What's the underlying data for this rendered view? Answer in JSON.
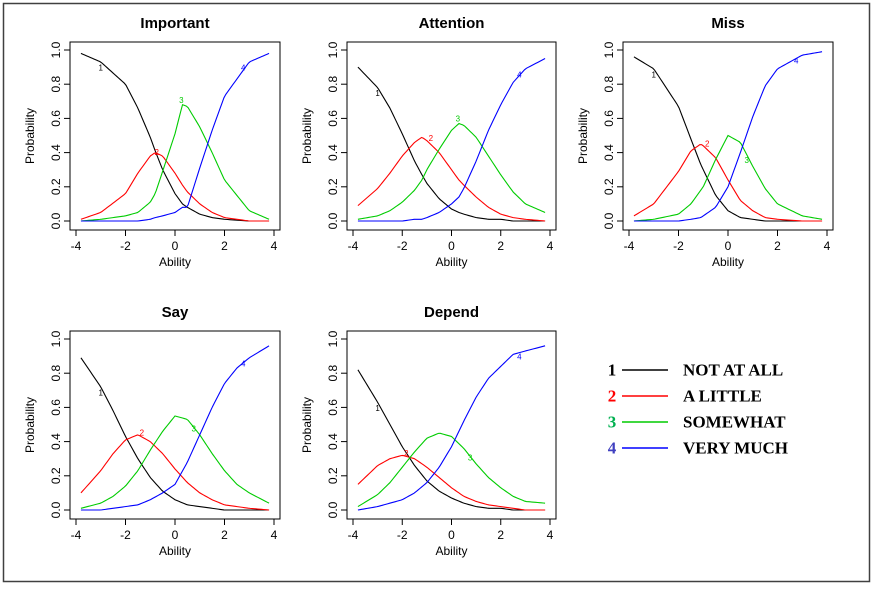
{
  "chart_data": [
    {
      "type": "line",
      "title": "Important",
      "xlabel": "Ability",
      "ylabel": "Probability",
      "xlim": [
        -4,
        4
      ],
      "ylim": [
        0,
        1
      ],
      "x_ticks": [
        "-4",
        "-2",
        "0",
        "2",
        "4"
      ],
      "y_ticks": [
        "0.0",
        "0.2",
        "0.4",
        "0.6",
        "0.8",
        "1.0"
      ],
      "x": [
        -3.8,
        -3,
        -2,
        -1.5,
        -1,
        -0.8,
        -0.5,
        0,
        0.3,
        0.5,
        1,
        1.5,
        2,
        3,
        3.8
      ],
      "series": [
        {
          "name": "1",
          "values": [
            0.98,
            0.93,
            0.8,
            0.66,
            0.49,
            0.41,
            0.3,
            0.16,
            0.1,
            0.08,
            0.04,
            0.02,
            0.01,
            0.0,
            0.0
          ]
        },
        {
          "name": "2",
          "values": [
            0.01,
            0.05,
            0.16,
            0.28,
            0.38,
            0.4,
            0.38,
            0.28,
            0.21,
            0.17,
            0.1,
            0.05,
            0.02,
            0.0,
            0.0
          ]
        },
        {
          "name": "3",
          "values": [
            0.0,
            0.01,
            0.03,
            0.05,
            0.11,
            0.16,
            0.29,
            0.51,
            0.68,
            0.67,
            0.55,
            0.4,
            0.24,
            0.06,
            0.01
          ]
        },
        {
          "name": "4",
          "values": [
            0.0,
            0.0,
            0.0,
            0.0,
            0.01,
            0.02,
            0.03,
            0.05,
            0.08,
            0.08,
            0.31,
            0.53,
            0.73,
            0.93,
            0.98
          ]
        }
      ],
      "curve_label_x": [
        -3,
        -0.9,
        0.5,
        3
      ]
    },
    {
      "type": "line",
      "title": "Attention",
      "xlabel": "Ability",
      "ylabel": "Probability",
      "xlim": [
        -4,
        4
      ],
      "ylim": [
        0,
        1
      ],
      "x_ticks": [
        "-4",
        "-2",
        "0",
        "2",
        "4"
      ],
      "y_ticks": [
        "0.0",
        "0.2",
        "0.4",
        "0.6",
        "0.8",
        "1.0"
      ],
      "x": [
        -3.8,
        -3,
        -2.5,
        -2,
        -1.5,
        -1.2,
        -1,
        -0.5,
        0,
        0.3,
        0.5,
        1,
        1.5,
        2,
        2.5,
        3,
        3.8
      ],
      "series": [
        {
          "name": "1",
          "values": [
            0.9,
            0.78,
            0.66,
            0.51,
            0.35,
            0.27,
            0.22,
            0.13,
            0.07,
            0.05,
            0.04,
            0.02,
            0.01,
            0.01,
            0.0,
            0.0,
            0.0
          ]
        },
        {
          "name": "2",
          "values": [
            0.09,
            0.19,
            0.28,
            0.38,
            0.46,
            0.49,
            0.47,
            0.4,
            0.3,
            0.24,
            0.21,
            0.14,
            0.08,
            0.04,
            0.02,
            0.01,
            0.0
          ]
        },
        {
          "name": "3",
          "values": [
            0.01,
            0.03,
            0.06,
            0.11,
            0.18,
            0.24,
            0.3,
            0.42,
            0.53,
            0.57,
            0.56,
            0.49,
            0.38,
            0.27,
            0.17,
            0.1,
            0.05
          ]
        },
        {
          "name": "4",
          "values": [
            0.0,
            0.0,
            0.0,
            0.0,
            0.01,
            0.01,
            0.02,
            0.05,
            0.1,
            0.14,
            0.19,
            0.35,
            0.53,
            0.68,
            0.81,
            0.89,
            0.95
          ]
        }
      ],
      "curve_label_x": [
        -3,
        -1,
        0.5,
        3
      ]
    },
    {
      "type": "line",
      "title": "Miss",
      "xlabel": "Ability",
      "ylabel": "Probability",
      "xlim": [
        -4,
        4
      ],
      "ylim": [
        0,
        1
      ],
      "x_ticks": [
        "-4",
        "-2",
        "0",
        "2",
        "4"
      ],
      "y_ticks": [
        "0.0",
        "0.2",
        "0.4",
        "0.6",
        "0.8",
        "1.0"
      ],
      "x": [
        -3.8,
        -3,
        -2,
        -1.5,
        -1.1,
        -1,
        -0.5,
        0,
        0.5,
        1,
        1.5,
        2,
        3,
        3.8
      ],
      "series": [
        {
          "name": "1",
          "values": [
            0.96,
            0.89,
            0.67,
            0.48,
            0.33,
            0.3,
            0.15,
            0.06,
            0.02,
            0.01,
            0.0,
            0.0,
            0.0,
            0.0
          ]
        },
        {
          "name": "2",
          "values": [
            0.03,
            0.1,
            0.29,
            0.41,
            0.45,
            0.44,
            0.37,
            0.24,
            0.12,
            0.06,
            0.02,
            0.01,
            0.0,
            0.0
          ]
        },
        {
          "name": "3",
          "values": [
            0.0,
            0.01,
            0.04,
            0.1,
            0.18,
            0.2,
            0.36,
            0.5,
            0.46,
            0.32,
            0.19,
            0.1,
            0.03,
            0.01
          ]
        },
        {
          "name": "4",
          "values": [
            0.0,
            0.0,
            0.0,
            0.01,
            0.02,
            0.03,
            0.08,
            0.2,
            0.4,
            0.61,
            0.79,
            0.89,
            0.97,
            0.99
          ]
        }
      ],
      "curve_label_x": [
        -3,
        -1,
        1,
        3
      ]
    },
    {
      "type": "line",
      "title": "Say",
      "xlabel": "Ability",
      "ylabel": "Probability",
      "xlim": [
        -4,
        4
      ],
      "ylim": [
        0,
        1
      ],
      "x_ticks": [
        "-4",
        "-2",
        "0",
        "2",
        "4"
      ],
      "y_ticks": [
        "0.0",
        "0.2",
        "0.4",
        "0.6",
        "0.8",
        "1.0"
      ],
      "x": [
        -3.8,
        -3,
        -2.5,
        -2,
        -1.5,
        -1,
        -0.5,
        0,
        0.5,
        1,
        1.5,
        2,
        2.5,
        3,
        3.8
      ],
      "series": [
        {
          "name": "1",
          "values": [
            0.89,
            0.72,
            0.58,
            0.43,
            0.3,
            0.19,
            0.11,
            0.06,
            0.03,
            0.02,
            0.01,
            0.0,
            0.0,
            0.0,
            0.0
          ]
        },
        {
          "name": "2",
          "values": [
            0.1,
            0.23,
            0.33,
            0.41,
            0.44,
            0.4,
            0.33,
            0.24,
            0.16,
            0.1,
            0.06,
            0.03,
            0.02,
            0.01,
            0.0
          ]
        },
        {
          "name": "3",
          "values": [
            0.01,
            0.04,
            0.08,
            0.14,
            0.23,
            0.35,
            0.46,
            0.55,
            0.53,
            0.44,
            0.33,
            0.23,
            0.15,
            0.1,
            0.04
          ]
        },
        {
          "name": "4",
          "values": [
            0.0,
            0.0,
            0.01,
            0.02,
            0.03,
            0.06,
            0.1,
            0.15,
            0.28,
            0.44,
            0.6,
            0.74,
            0.83,
            0.89,
            0.96
          ]
        }
      ],
      "curve_label_x": [
        -3,
        -1.5,
        1,
        3
      ]
    },
    {
      "type": "line",
      "title": "Depend",
      "xlabel": "Ability",
      "ylabel": "Probability",
      "xlim": [
        -4,
        4
      ],
      "ylim": [
        0,
        1
      ],
      "x_ticks": [
        "-4",
        "-2",
        "0",
        "2",
        "4"
      ],
      "y_ticks": [
        "0.0",
        "0.2",
        "0.4",
        "0.6",
        "0.8",
        "1.0"
      ],
      "x": [
        -3.8,
        -3,
        -2.5,
        -2,
        -1.5,
        -1,
        -0.5,
        0,
        0.5,
        1,
        1.5,
        2,
        2.5,
        3,
        3.8
      ],
      "series": [
        {
          "name": "1",
          "values": [
            0.82,
            0.63,
            0.5,
            0.37,
            0.26,
            0.17,
            0.11,
            0.07,
            0.04,
            0.02,
            0.01,
            0.01,
            0.0,
            0.0,
            0.0
          ]
        },
        {
          "name": "2",
          "values": [
            0.15,
            0.26,
            0.3,
            0.32,
            0.3,
            0.25,
            0.19,
            0.13,
            0.08,
            0.05,
            0.03,
            0.02,
            0.01,
            0.0,
            0.0
          ]
        },
        {
          "name": "3",
          "values": [
            0.02,
            0.09,
            0.16,
            0.25,
            0.34,
            0.42,
            0.45,
            0.43,
            0.36,
            0.27,
            0.19,
            0.13,
            0.08,
            0.05,
            0.04
          ]
        },
        {
          "name": "4",
          "values": [
            0.0,
            0.02,
            0.04,
            0.06,
            0.1,
            0.16,
            0.25,
            0.37,
            0.52,
            0.66,
            0.77,
            0.84,
            0.91,
            0.93,
            0.96
          ]
        }
      ],
      "curve_label_x": [
        -3,
        -2,
        1,
        3
      ]
    }
  ],
  "legend": {
    "items": [
      {
        "number": "1",
        "label": "NOT AT ALL",
        "color": "#000000",
        "number_color": "#000000"
      },
      {
        "number": "2",
        "label": "A LITTLE",
        "color": "#ff0000",
        "number_color": "#ff0000"
      },
      {
        "number": "3",
        "label": "SOMEWHAT",
        "color": "#00cc00",
        "number_color": "#00b050"
      },
      {
        "number": "4",
        "label": "VERY MUCH",
        "color": "#0000ff",
        "number_color": "#4040c0"
      }
    ]
  },
  "colors": {
    "series": [
      "#000000",
      "#ff0000",
      "#00cc00",
      "#0000ff"
    ],
    "frame": "#404040"
  }
}
